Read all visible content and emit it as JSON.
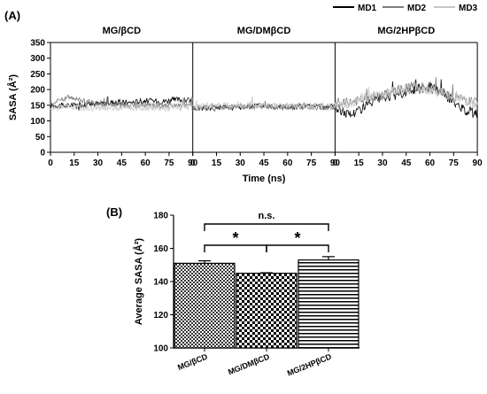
{
  "figure": {
    "panel_a_label": "(A)",
    "panel_b_label": "(B)"
  },
  "chart_data": [
    {
      "type": "line",
      "panel": "(A)",
      "facets": [
        "MG/βCD",
        "MG/DMβCD",
        "MG/2HPβCD"
      ],
      "xlabel": "Time (ns)",
      "ylabel": "SASA (Å²)",
      "x_ticks": [
        0,
        15,
        30,
        45,
        60,
        75,
        90
      ],
      "y_ticks": [
        0,
        50,
        100,
        150,
        200,
        250,
        300,
        350
      ],
      "xlim": [
        0,
        90
      ],
      "ylim": [
        0,
        350
      ],
      "legend": [
        "MD1",
        "MD2",
        "MD3"
      ],
      "legend_position": "top-right",
      "series_colors": {
        "MD1": "#000000",
        "MD2": "#7f7f7f",
        "MD3": "#c8c8c8"
      },
      "series": [
        {
          "facet": "MG/βCD",
          "lines": [
            {
              "name": "MD1",
              "x": [
                0,
                10,
                20,
                30,
                40,
                50,
                60,
                70,
                80,
                90
              ],
              "y": [
                150,
                148,
                152,
                155,
                160,
                158,
                165,
                162,
                168,
                165
              ]
            },
            {
              "name": "MD2",
              "x": [
                0,
                10,
                20,
                30,
                40,
                50,
                60,
                70,
                80,
                90
              ],
              "y": [
                155,
                175,
                165,
                155,
                150,
                148,
                150,
                148,
                150,
                150
              ]
            },
            {
              "name": "MD3",
              "x": [
                0,
                10,
                20,
                30,
                40,
                50,
                60,
                70,
                80,
                90
              ],
              "y": [
                140,
                145,
                142,
                140,
                143,
                141,
                142,
                140,
                142,
                141
              ]
            }
          ]
        },
        {
          "facet": "MG/DMβCD",
          "lines": [
            {
              "name": "MD1",
              "x": [
                0,
                10,
                20,
                30,
                40,
                50,
                60,
                70,
                80,
                90
              ],
              "y": [
                140,
                142,
                145,
                143,
                150,
                148,
                145,
                147,
                146,
                145
              ]
            },
            {
              "name": "MD2",
              "x": [
                0,
                10,
                20,
                30,
                40,
                50,
                60,
                70,
                80,
                90
              ],
              "y": [
                142,
                140,
                143,
                145,
                146,
                144,
                143,
                145,
                144,
                143
              ]
            },
            {
              "name": "MD3",
              "x": [
                0,
                10,
                20,
                30,
                40,
                50,
                60,
                70,
                80,
                90
              ],
              "y": [
                145,
                148,
                150,
                147,
                152,
                149,
                148,
                150,
                149,
                148
              ]
            }
          ]
        },
        {
          "facet": "MG/2HPβCD",
          "lines": [
            {
              "name": "MD1",
              "x": [
                0,
                10,
                20,
                30,
                40,
                50,
                60,
                70,
                80,
                90
              ],
              "y": [
                140,
                120,
                150,
                175,
                185,
                200,
                210,
                180,
                140,
                120
              ]
            },
            {
              "name": "MD2",
              "x": [
                0,
                10,
                20,
                30,
                40,
                50,
                60,
                70,
                80,
                90
              ],
              "y": [
                150,
                160,
                170,
                180,
                200,
                210,
                205,
                180,
                170,
                160
              ]
            },
            {
              "name": "MD3",
              "x": [
                0,
                10,
                20,
                30,
                40,
                50,
                60,
                70,
                80,
                90
              ],
              "y": [
                145,
                155,
                175,
                185,
                195,
                205,
                200,
                185,
                170,
                150
              ]
            }
          ]
        }
      ]
    },
    {
      "type": "bar",
      "panel": "(B)",
      "categories": [
        "MG/βCD",
        "MG/DMβCD",
        "MG/2HPβCD"
      ],
      "values": [
        151,
        145,
        153
      ],
      "errors": [
        1.5,
        0.3,
        2.0
      ],
      "ylabel": "Average SASA (Å²)",
      "ylim": [
        100,
        180
      ],
      "y_ticks": [
        100,
        120,
        140,
        160,
        180
      ],
      "bar_patterns": [
        "dense-checker",
        "checker",
        "horizontal-stripes"
      ],
      "significance": [
        {
          "from": "MG/βCD",
          "to": "MG/2HPβCD",
          "label": "n.s."
        },
        {
          "from": "MG/βCD",
          "to": "MG/DMβCD",
          "label": "*"
        },
        {
          "from": "MG/DMβCD",
          "to": "MG/2HPβCD",
          "label": "*"
        }
      ]
    }
  ]
}
